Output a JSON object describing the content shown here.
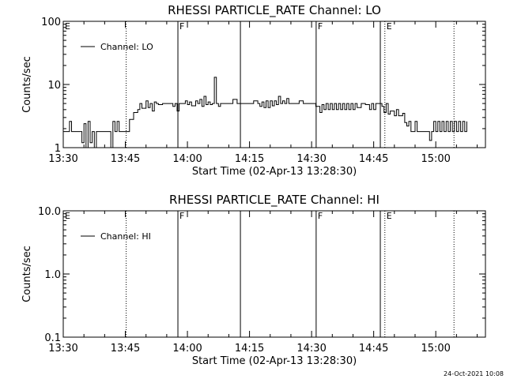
{
  "timestamp": "24-Oct-2021 10:08",
  "chart_data": [
    {
      "type": "line",
      "title": "RHESSI PARTICLE_RATE Channel: LO",
      "xlabel": "Start Time (02-Apr-13 13:28:30)",
      "ylabel": "Counts/sec",
      "yscale": "log",
      "ylim": [
        1,
        100
      ],
      "xlim_minutes": [
        0,
        102
      ],
      "x_tick_labels": [
        "13:30",
        "13:45",
        "14:00",
        "14:15",
        "14:30",
        "14:45",
        "15:00"
      ],
      "x_tick_minutes": [
        0,
        15,
        30,
        45,
        60,
        75,
        90
      ],
      "y_tick_labels": [
        "1",
        "10",
        "100"
      ],
      "y_tick_values": [
        1,
        10,
        100
      ],
      "legend": {
        "label": "Channel: LO",
        "position": "top-left"
      },
      "vertical_markers": [
        {
          "t": 15.2,
          "style": "dotted",
          "label": ""
        },
        {
          "t": 27.7,
          "style": "solid",
          "label": "F"
        },
        {
          "t": 42.8,
          "style": "solid",
          "label": ""
        },
        {
          "t": 61.1,
          "style": "solid",
          "label": "F"
        },
        {
          "t": 76.6,
          "style": "solid",
          "label": ""
        },
        {
          "t": 77.7,
          "style": "dotted",
          "label": "E"
        },
        {
          "t": 94.4,
          "style": "dotted",
          "label": ""
        }
      ],
      "edge_labels": [
        {
          "t": 0,
          "label": "E"
        }
      ],
      "series": [
        {
          "values": [
            [
              0,
              1.8
            ],
            [
              1,
              1.8
            ],
            [
              1.5,
              2.6
            ],
            [
              2,
              1.8
            ],
            [
              3,
              1.8
            ],
            [
              4,
              1.8
            ],
            [
              4.5,
              1.2
            ],
            [
              5,
              2.4
            ],
            [
              5.5,
              1.0
            ],
            [
              6,
              2.6
            ],
            [
              6.5,
              1.2
            ],
            [
              7,
              1.8
            ],
            [
              7.5,
              1.0
            ],
            [
              8,
              1.8
            ],
            [
              9,
              1.8
            ],
            [
              10,
              1.8
            ],
            [
              11,
              1.8
            ],
            [
              11.5,
              1.0
            ],
            [
              12,
              2.6
            ],
            [
              12.5,
              1.8
            ],
            [
              13,
              2.6
            ],
            [
              13.5,
              1.8
            ],
            [
              15,
              1.8
            ],
            [
              16,
              2.8
            ],
            [
              17,
              3.6
            ],
            [
              18,
              4.0
            ],
            [
              18.5,
              5.0
            ],
            [
              19,
              4.2
            ],
            [
              20,
              5.5
            ],
            [
              20.5,
              4.3
            ],
            [
              21,
              5.0
            ],
            [
              21.5,
              3.8
            ],
            [
              22,
              5.3
            ],
            [
              22.5,
              5.0
            ],
            [
              23,
              4.8
            ],
            [
              24,
              5.0
            ],
            [
              25,
              5.0
            ],
            [
              26,
              5.0
            ],
            [
              26.5,
              4.5
            ],
            [
              27,
              5.0
            ],
            [
              27.5,
              3.8
            ],
            [
              28,
              5.0
            ],
            [
              29,
              5.0
            ],
            [
              29.5,
              5.5
            ],
            [
              30,
              4.8
            ],
            [
              30.5,
              5.3
            ],
            [
              31,
              4.6
            ],
            [
              32,
              5.5
            ],
            [
              32.5,
              5.0
            ],
            [
              33,
              5.8
            ],
            [
              33.5,
              4.5
            ],
            [
              34,
              6.5
            ],
            [
              34.5,
              4.8
            ],
            [
              35,
              5.3
            ],
            [
              35.5,
              4.8
            ],
            [
              36,
              5.0
            ],
            [
              36.5,
              13.0
            ],
            [
              37,
              5.0
            ],
            [
              37.5,
              4.5
            ],
            [
              38,
              5.0
            ],
            [
              39,
              5.0
            ],
            [
              40,
              5.0
            ],
            [
              41,
              5.8
            ],
            [
              42,
              5.0
            ],
            [
              43,
              5.0
            ],
            [
              44,
              5.0
            ],
            [
              45,
              5.0
            ],
            [
              46,
              5.5
            ],
            [
              47,
              5.0
            ],
            [
              47.5,
              4.5
            ],
            [
              48,
              5.3
            ],
            [
              48.5,
              4.3
            ],
            [
              49,
              5.5
            ],
            [
              49.5,
              4.3
            ],
            [
              50,
              5.5
            ],
            [
              50.5,
              4.6
            ],
            [
              51,
              5.5
            ],
            [
              51.5,
              4.8
            ],
            [
              52,
              6.5
            ],
            [
              52.5,
              5.0
            ],
            [
              53,
              5.5
            ],
            [
              53.5,
              5.0
            ],
            [
              54,
              6.0
            ],
            [
              54.5,
              5.0
            ],
            [
              55,
              5.0
            ],
            [
              56,
              5.0
            ],
            [
              57,
              5.5
            ],
            [
              58,
              5.0
            ],
            [
              59,
              5.0
            ],
            [
              60,
              5.0
            ],
            [
              60.5,
              5.0
            ],
            [
              61,
              4.5
            ],
            [
              62,
              3.6
            ],
            [
              62.5,
              4.8
            ],
            [
              63,
              4.0
            ],
            [
              63.5,
              5.0
            ],
            [
              64,
              4.0
            ],
            [
              64.5,
              5.0
            ],
            [
              65,
              4.0
            ],
            [
              65.5,
              5.0
            ],
            [
              66,
              4.0
            ],
            [
              66.5,
              5.0
            ],
            [
              67,
              4.0
            ],
            [
              67.5,
              5.0
            ],
            [
              68,
              4.0
            ],
            [
              68.5,
              5.0
            ],
            [
              69,
              4.0
            ],
            [
              69.5,
              5.0
            ],
            [
              70,
              4.0
            ],
            [
              70.5,
              5.0
            ],
            [
              71,
              4.3
            ],
            [
              72,
              5.0
            ],
            [
              73,
              4.8
            ],
            [
              74,
              4.0
            ],
            [
              74.5,
              5.0
            ],
            [
              75,
              4.0
            ],
            [
              75.5,
              5.0
            ],
            [
              76,
              5.0
            ],
            [
              77,
              4.5
            ],
            [
              77.5,
              3.6
            ],
            [
              78,
              5.0
            ],
            [
              78.5,
              3.4
            ],
            [
              79,
              3.8
            ],
            [
              80,
              3.2
            ],
            [
              80.5,
              4.0
            ],
            [
              81,
              3.2
            ],
            [
              82,
              3.5
            ],
            [
              82.5,
              2.5
            ],
            [
              83,
              2.2
            ],
            [
              83.5,
              2.6
            ],
            [
              84,
              1.8
            ],
            [
              85,
              2.6
            ],
            [
              85.5,
              1.8
            ],
            [
              86,
              1.8
            ],
            [
              87,
              1.8
            ],
            [
              88,
              1.8
            ],
            [
              88.5,
              1.3
            ],
            [
              89,
              1.8
            ],
            [
              89.5,
              2.6
            ],
            [
              90,
              1.8
            ],
            [
              90.5,
              2.6
            ],
            [
              91,
              1.8
            ],
            [
              91.5,
              2.6
            ],
            [
              92,
              1.8
            ],
            [
              92.5,
              2.6
            ],
            [
              93,
              1.8
            ],
            [
              93.5,
              2.6
            ],
            [
              94,
              1.8
            ],
            [
              94.5,
              2.6
            ],
            [
              95,
              1.8
            ],
            [
              95.5,
              2.6
            ],
            [
              96,
              1.8
            ],
            [
              96.5,
              2.6
            ],
            [
              97,
              1.8
            ],
            [
              97.5,
              2.6
            ]
          ]
        }
      ]
    },
    {
      "type": "line",
      "title": "RHESSI PARTICLE_RATE Channel: HI",
      "xlabel": "Start Time (02-Apr-13 13:28:30)",
      "ylabel": "Counts/sec",
      "yscale": "log",
      "ylim": [
        0.1,
        10.0
      ],
      "xlim_minutes": [
        0,
        102
      ],
      "x_tick_labels": [
        "13:30",
        "13:45",
        "14:00",
        "14:15",
        "14:30",
        "14:45",
        "15:00"
      ],
      "x_tick_minutes": [
        0,
        15,
        30,
        45,
        60,
        75,
        90
      ],
      "y_tick_labels": [
        "0.1",
        "1.0",
        "10.0"
      ],
      "y_tick_values": [
        0.1,
        1.0,
        10.0
      ],
      "legend": {
        "label": "Channel: HI",
        "position": "top-left"
      },
      "vertical_markers": [
        {
          "t": 15.2,
          "style": "dotted",
          "label": ""
        },
        {
          "t": 27.7,
          "style": "solid",
          "label": "F"
        },
        {
          "t": 42.8,
          "style": "solid",
          "label": ""
        },
        {
          "t": 61.1,
          "style": "solid",
          "label": "F"
        },
        {
          "t": 76.6,
          "style": "solid",
          "label": ""
        },
        {
          "t": 77.7,
          "style": "dotted",
          "label": "E"
        },
        {
          "t": 94.4,
          "style": "dotted",
          "label": ""
        }
      ],
      "edge_labels": [
        {
          "t": 0,
          "label": "E"
        }
      ],
      "series": []
    }
  ]
}
